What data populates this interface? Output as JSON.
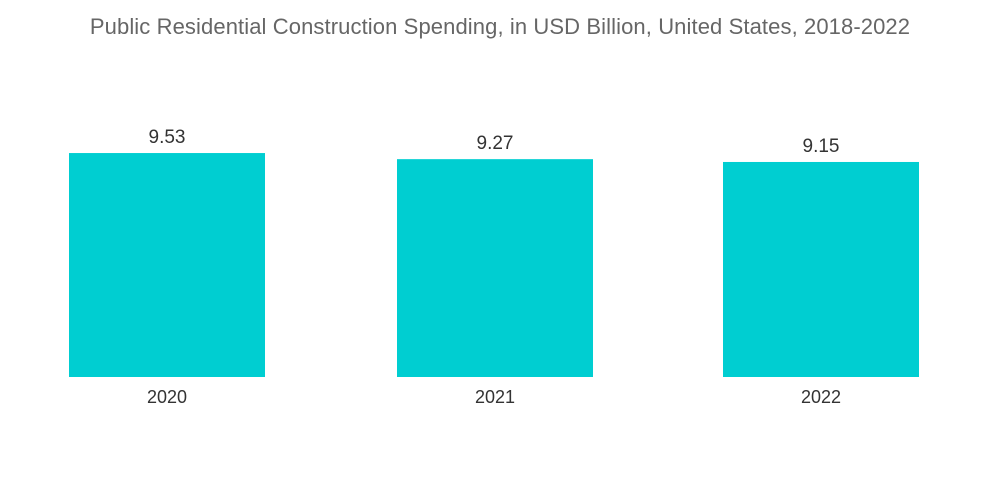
{
  "chart_data": {
    "type": "bar",
    "title": "Public Residential Construction Spending, in USD Billion, United States, 2018-2022",
    "xlabel": "",
    "ylabel": "",
    "categories": [
      "2020",
      "2021",
      "2022"
    ],
    "values": [
      9.53,
      9.27,
      9.15
    ],
    "value_labels": [
      "9.53",
      "9.27",
      "9.15"
    ],
    "bar_color": "#00CED1",
    "grid": false,
    "legend": "none"
  }
}
